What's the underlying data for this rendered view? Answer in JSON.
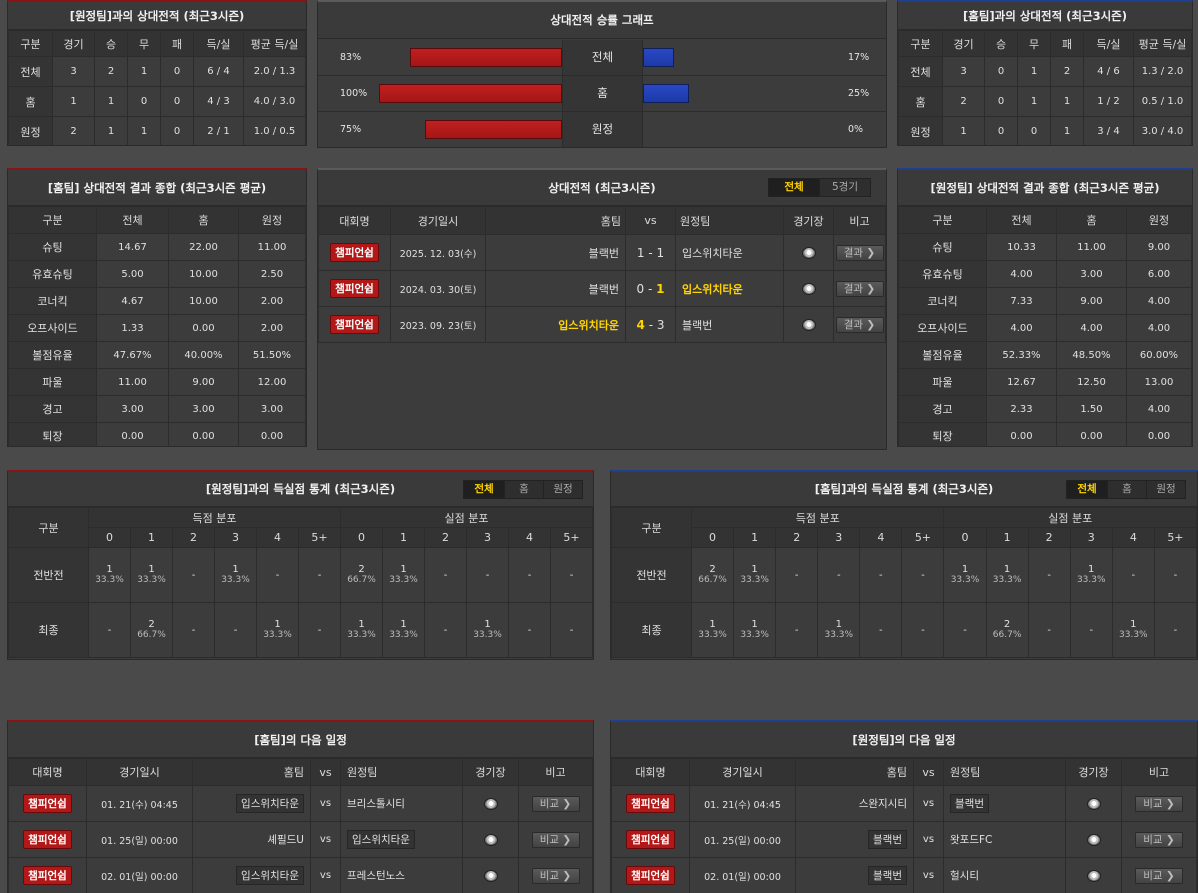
{
  "h2h_away": {
    "title": "[원정팀]과의 상대전적 (최근3시즌)",
    "headers": [
      "구분",
      "경기",
      "승",
      "무",
      "패",
      "득/실",
      "평균 득/실"
    ],
    "rows": [
      [
        "전체",
        "3",
        "2",
        "1",
        "0",
        "6 / 4",
        "2.0 / 1.3"
      ],
      [
        "홈",
        "1",
        "1",
        "0",
        "0",
        "4 / 3",
        "4.0 / 3.0"
      ],
      [
        "원정",
        "2",
        "1",
        "1",
        "0",
        "2 / 1",
        "1.0 / 0.5"
      ]
    ]
  },
  "graph": {
    "title": "상대전적 승률 그래프",
    "rows": [
      {
        "label": "전체",
        "left": "83%",
        "right": "17%",
        "left_value": 83,
        "right_value": 17
      },
      {
        "label": "홈",
        "left": "100%",
        "right": "25%",
        "left_value": 100,
        "right_value": 25
      },
      {
        "label": "원정",
        "left": "75%",
        "right": "0%",
        "left_value": 75,
        "right_value": 0
      }
    ],
    "colors": {
      "home": "#c01f1f",
      "away": "#2a48c4"
    }
  },
  "h2h_home": {
    "title": "[홈팀]과의 상대전적 (최근3시즌)",
    "headers": [
      "구분",
      "경기",
      "승",
      "무",
      "패",
      "득/실",
      "평균 득/실"
    ],
    "rows": [
      [
        "전체",
        "3",
        "0",
        "1",
        "2",
        "4 / 6",
        "1.3 / 2.0"
      ],
      [
        "홈",
        "2",
        "0",
        "1",
        "1",
        "1 / 2",
        "0.5 / 1.0"
      ],
      [
        "원정",
        "1",
        "0",
        "0",
        "1",
        "3 / 4",
        "3.0 / 4.0"
      ]
    ]
  },
  "summary_home": {
    "title": "[홈팀] 상대전적 결과 종합 (최근3시즌 평균)",
    "headers": [
      "구분",
      "전체",
      "홈",
      "원정"
    ],
    "rows": [
      [
        "슈팅",
        "14.67",
        "22.00",
        "11.00"
      ],
      [
        "유효슈팅",
        "5.00",
        "10.00",
        "2.50"
      ],
      [
        "코너킥",
        "4.67",
        "10.00",
        "2.00"
      ],
      [
        "오프사이드",
        "1.33",
        "0.00",
        "2.00"
      ],
      [
        "볼점유율",
        "47.67%",
        "40.00%",
        "51.50%"
      ],
      [
        "파울",
        "11.00",
        "9.00",
        "12.00"
      ],
      [
        "경고",
        "3.00",
        "3.00",
        "3.00"
      ],
      [
        "퇴장",
        "0.00",
        "0.00",
        "0.00"
      ]
    ]
  },
  "matches": {
    "title": "상대전적 (최근3시즌)",
    "tabs": [
      "전체",
      "5경기"
    ],
    "headers": {
      "league": "대회명",
      "date": "경기일시",
      "home": "홈팀",
      "vs": "vs",
      "away": "원정팀",
      "stadium": "경기장",
      "note": "비고"
    },
    "rows": [
      {
        "league": "챔피언쉽",
        "date": "2025. 12. 03(수)",
        "home": "블랙번",
        "hs": "1",
        "as": "1",
        "away": "입스위치타운",
        "btn": "결과 ❯",
        "win": "none"
      },
      {
        "league": "챔피언쉽",
        "date": "2024. 03. 30(토)",
        "home": "블랙번",
        "hs": "0",
        "as": "1",
        "away": "입스위치타운",
        "btn": "결과 ❯",
        "win": "away"
      },
      {
        "league": "챔피언쉽",
        "date": "2023. 09. 23(토)",
        "home": "입스위치타운",
        "hs": "4",
        "as": "3",
        "away": "블랙번",
        "btn": "결과 ❯",
        "win": "home"
      }
    ]
  },
  "summary_away": {
    "title": "[원정팀] 상대전적 결과 종합 (최근3시즌 평균)",
    "headers": [
      "구분",
      "전체",
      "홈",
      "원정"
    ],
    "rows": [
      [
        "슈팅",
        "10.33",
        "11.00",
        "9.00"
      ],
      [
        "유효슈팅",
        "4.00",
        "3.00",
        "6.00"
      ],
      [
        "코너킥",
        "7.33",
        "9.00",
        "4.00"
      ],
      [
        "오프사이드",
        "4.00",
        "4.00",
        "4.00"
      ],
      [
        "볼점유율",
        "52.33%",
        "48.50%",
        "60.00%"
      ],
      [
        "파울",
        "12.67",
        "12.50",
        "13.00"
      ],
      [
        "경고",
        "2.33",
        "1.50",
        "4.00"
      ],
      [
        "퇴장",
        "0.00",
        "0.00",
        "0.00"
      ]
    ]
  },
  "goals_left": {
    "title": "[원정팀]과의 득실점 통계 (최근3시즌)",
    "tabs": [
      "전체",
      "홈",
      "원정"
    ],
    "head": {
      "category": "구분",
      "scored": "득점 분포",
      "conceded": "실점 분포"
    },
    "cols": [
      "0",
      "1",
      "2",
      "3",
      "4",
      "5+"
    ],
    "rows": [
      {
        "label": "전반전",
        "cells": [
          [
            "1",
            "33.3%"
          ],
          [
            "1",
            "33.3%"
          ],
          [
            "-",
            ""
          ],
          [
            "1",
            "33.3%"
          ],
          [
            "-",
            ""
          ],
          [
            "-",
            ""
          ],
          [
            "2",
            "66.7%"
          ],
          [
            "1",
            "33.3%"
          ],
          [
            "-",
            ""
          ],
          [
            "-",
            ""
          ],
          [
            "-",
            ""
          ],
          [
            "-",
            ""
          ]
        ]
      },
      {
        "label": "최종",
        "cells": [
          [
            "-",
            ""
          ],
          [
            "2",
            "66.7%"
          ],
          [
            "-",
            ""
          ],
          [
            "-",
            ""
          ],
          [
            "1",
            "33.3%"
          ],
          [
            "-",
            ""
          ],
          [
            "1",
            "33.3%"
          ],
          [
            "1",
            "33.3%"
          ],
          [
            "-",
            ""
          ],
          [
            "1",
            "33.3%"
          ],
          [
            "-",
            ""
          ],
          [
            "-",
            ""
          ]
        ]
      }
    ]
  },
  "goals_right": {
    "title": "[홈팀]과의 득실점 통계 (최근3시즌)",
    "tabs": [
      "전체",
      "홈",
      "원정"
    ],
    "head": {
      "category": "구분",
      "scored": "득점 분포",
      "conceded": "실점 분포"
    },
    "cols": [
      "0",
      "1",
      "2",
      "3",
      "4",
      "5+"
    ],
    "rows": [
      {
        "label": "전반전",
        "cells": [
          [
            "2",
            "66.7%"
          ],
          [
            "1",
            "33.3%"
          ],
          [
            "-",
            ""
          ],
          [
            "-",
            ""
          ],
          [
            "-",
            ""
          ],
          [
            "-",
            ""
          ],
          [
            "1",
            "33.3%"
          ],
          [
            "1",
            "33.3%"
          ],
          [
            "-",
            ""
          ],
          [
            "1",
            "33.3%"
          ],
          [
            "-",
            ""
          ],
          [
            "-",
            ""
          ]
        ]
      },
      {
        "label": "최종",
        "cells": [
          [
            "1",
            "33.3%"
          ],
          [
            "1",
            "33.3%"
          ],
          [
            "-",
            ""
          ],
          [
            "1",
            "33.3%"
          ],
          [
            "-",
            ""
          ],
          [
            "-",
            ""
          ],
          [
            "-",
            ""
          ],
          [
            "2",
            "66.7%"
          ],
          [
            "-",
            ""
          ],
          [
            "-",
            ""
          ],
          [
            "1",
            "33.3%"
          ],
          [
            "-",
            ""
          ]
        ]
      }
    ]
  },
  "next_home": {
    "title": "[홈팀]의 다음 일정",
    "headers": {
      "league": "대회명",
      "date": "경기일시",
      "home": "홈팀",
      "vs": "vs",
      "away": "원정팀",
      "stadium": "경기장",
      "note": "비고"
    },
    "rows": [
      {
        "league": "챔피언쉽",
        "date": "01. 21(수) 04:45",
        "home": "입스위치타운",
        "away": "브리스톨시티",
        "boxed": "home",
        "btn": "비교 ❯"
      },
      {
        "league": "챔피언쉽",
        "date": "01. 25(일) 00:00",
        "home": "셰필드U",
        "away": "입스위치타운",
        "boxed": "away",
        "btn": "비교 ❯"
      },
      {
        "league": "챔피언쉽",
        "date": "02. 01(일) 00:00",
        "home": "입스위치타운",
        "away": "프레스턴노스",
        "boxed": "home",
        "btn": "비교 ❯"
      }
    ]
  },
  "next_away": {
    "title": "[원정팀]의 다음 일정",
    "headers": {
      "league": "대회명",
      "date": "경기일시",
      "home": "홈팀",
      "vs": "vs",
      "away": "원정팀",
      "stadium": "경기장",
      "note": "비고"
    },
    "rows": [
      {
        "league": "챔피언쉽",
        "date": "01. 21(수) 04:45",
        "home": "스완지시티",
        "away": "블랙번",
        "boxed": "away",
        "btn": "비교 ❯"
      },
      {
        "league": "챔피언쉽",
        "date": "01. 25(일) 00:00",
        "home": "블랙번",
        "away": "왓포드FC",
        "boxed": "home",
        "btn": "비교 ❯"
      },
      {
        "league": "챔피언쉽",
        "date": "02. 01(일) 00:00",
        "home": "블랙번",
        "away": "헐시티",
        "boxed": "home",
        "btn": "비교 ❯"
      }
    ]
  }
}
